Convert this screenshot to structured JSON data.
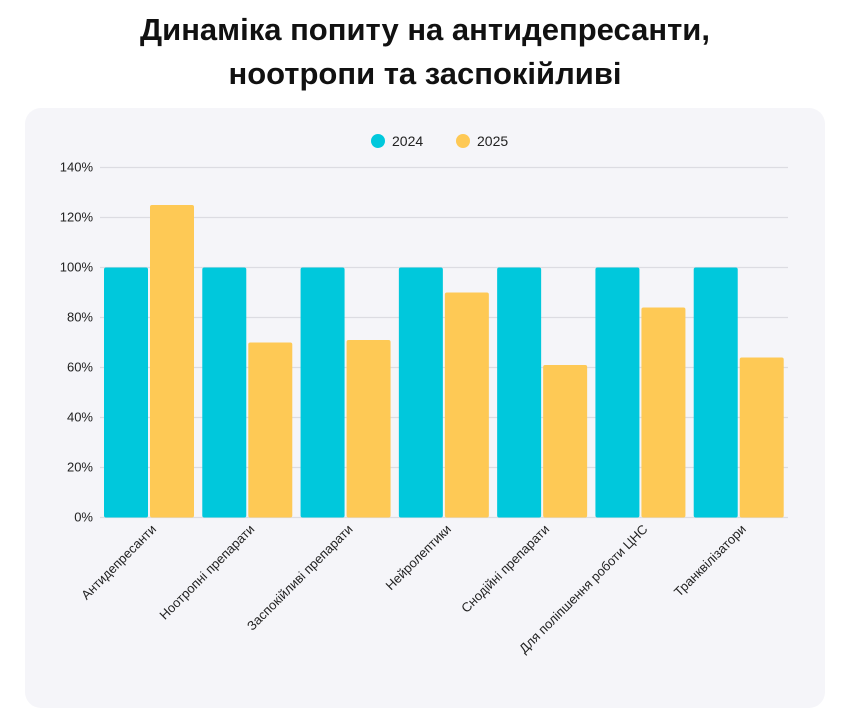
{
  "title_lines": [
    "Динаміка попиту на антидепресанти,",
    "ноотропи та заспокійливі"
  ],
  "chart_data": {
    "type": "bar",
    "title": "Динаміка попиту на антидепресанти, ноотропи та заспокійливі",
    "categories": [
      "Антидепресанти",
      "Ноотропні препарати",
      "Заспокійливі препарати",
      "Нейролептики",
      "Снодійні препарати",
      "Для поліпшення роботи ЦНС",
      "Транквілізатори"
    ],
    "series": [
      {
        "name": "2024",
        "color": "#00c8dc",
        "values": [
          100,
          100,
          100,
          100,
          100,
          100,
          100
        ]
      },
      {
        "name": "2025",
        "color": "#fec955",
        "values": [
          125,
          70,
          71,
          90,
          61,
          84,
          64
        ]
      }
    ],
    "ylim": [
      0,
      140
    ],
    "yticks": [
      "0%",
      "20%",
      "40%",
      "60%",
      "80%",
      "100%",
      "120%",
      "140%"
    ],
    "grid": true,
    "legend": "top-center",
    "xlabel": "",
    "ylabel": ""
  }
}
